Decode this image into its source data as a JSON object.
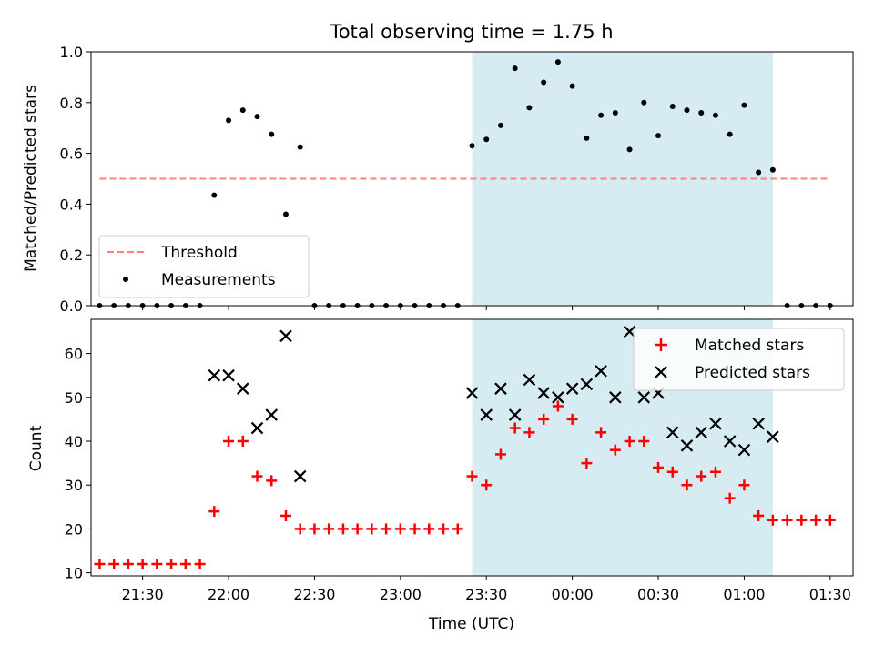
{
  "chart_data": [
    {
      "type": "scatter",
      "title": "Total observing time = 1.75 h",
      "xlabel": "",
      "ylabel": "Matched/Predicted stars",
      "ylim": [
        0,
        1.0
      ],
      "xlim": [
        "21:12",
        "01:38"
      ],
      "yticks": [
        "0.0",
        "0.2",
        "0.4",
        "0.6",
        "0.8",
        "1.0"
      ],
      "highlight_span": [
        "23:25",
        "01:10"
      ],
      "highlight_color": "#add8e6",
      "legend": {
        "placement": "lower-left",
        "entries": [
          "Threshold",
          "Measurements"
        ]
      },
      "threshold": {
        "name": "Threshold",
        "value": 0.5,
        "x_range": [
          "21:15",
          "01:30"
        ],
        "color": "#ff8080"
      },
      "series": [
        {
          "name": "Measurements",
          "color": "#000000",
          "marker": "dot",
          "x": [
            "21:15",
            "21:20",
            "21:25",
            "21:30",
            "21:35",
            "21:40",
            "21:45",
            "21:50",
            "21:55",
            "22:00",
            "22:05",
            "22:10",
            "22:15",
            "22:20",
            "22:25",
            "22:30",
            "22:35",
            "22:40",
            "22:45",
            "22:50",
            "22:55",
            "23:00",
            "23:05",
            "23:10",
            "23:15",
            "23:20",
            "23:25",
            "23:30",
            "23:35",
            "23:40",
            "23:45",
            "23:50",
            "23:55",
            "00:00",
            "00:05",
            "00:10",
            "00:15",
            "00:20",
            "00:25",
            "00:30",
            "00:35",
            "00:40",
            "00:45",
            "00:50",
            "00:55",
            "01:00",
            "01:05",
            "01:10",
            "01:15",
            "01:20",
            "01:25",
            "01:30"
          ],
          "y": [
            0,
            0,
            0,
            0,
            0,
            0,
            0,
            0,
            0.435,
            0.73,
            0.77,
            0.745,
            0.675,
            0.36,
            0.625,
            0,
            0,
            0,
            0,
            0,
            0,
            0,
            0,
            0,
            0,
            0,
            0.63,
            0.655,
            0.71,
            0.935,
            0.78,
            0.88,
            0.96,
            0.865,
            0.66,
            0.75,
            0.76,
            0.615,
            0.8,
            0.67,
            0.785,
            0.77,
            0.76,
            0.75,
            0.675,
            0.79,
            0.525,
            0.535,
            0,
            0,
            0,
            0
          ]
        }
      ]
    },
    {
      "type": "scatter",
      "xlabel": "Time (UTC)",
      "ylabel": "Count",
      "ylim": [
        9.3,
        67.8
      ],
      "xlim": [
        "21:12",
        "01:38"
      ],
      "yticks": [
        "10",
        "20",
        "30",
        "40",
        "50",
        "60"
      ],
      "xticks": [
        "21:30",
        "22:00",
        "22:30",
        "23:00",
        "23:30",
        "00:00",
        "00:30",
        "01:00",
        "01:30"
      ],
      "highlight_span": [
        "23:25",
        "01:10"
      ],
      "highlight_color": "#add8e6",
      "legend": {
        "placement": "upper-right",
        "entries": [
          "Matched stars",
          "Predicted stars"
        ]
      },
      "series": [
        {
          "name": "Matched stars",
          "color": "#ff0000",
          "marker": "plus",
          "x": [
            "21:15",
            "21:20",
            "21:25",
            "21:30",
            "21:35",
            "21:40",
            "21:45",
            "21:50",
            "21:55",
            "22:00",
            "22:05",
            "22:10",
            "22:15",
            "22:20",
            "22:25",
            "22:30",
            "22:35",
            "22:40",
            "22:45",
            "22:50",
            "22:55",
            "23:00",
            "23:05",
            "23:10",
            "23:15",
            "23:20",
            "23:25",
            "23:30",
            "23:35",
            "23:40",
            "23:45",
            "23:50",
            "23:55",
            "00:00",
            "00:05",
            "00:10",
            "00:15",
            "00:20",
            "00:25",
            "00:30",
            "00:35",
            "00:40",
            "00:45",
            "00:50",
            "00:55",
            "01:00",
            "01:05",
            "01:10",
            "01:15",
            "01:20",
            "01:25",
            "01:30"
          ],
          "y": [
            12,
            12,
            12,
            12,
            12,
            12,
            12,
            12,
            24,
            40,
            40,
            32,
            31,
            23,
            20,
            20,
            20,
            20,
            20,
            20,
            20,
            20,
            20,
            20,
            20,
            20,
            32,
            30,
            37,
            43,
            42,
            45,
            48,
            45,
            35,
            42,
            38,
            40,
            40,
            34,
            33,
            30,
            32,
            33,
            27,
            30,
            23,
            22,
            22,
            22,
            22,
            22
          ]
        },
        {
          "name": "Predicted stars",
          "color": "#000000",
          "marker": "x",
          "x": [
            "21:55",
            "22:00",
            "22:05",
            "22:10",
            "22:15",
            "22:20",
            "22:25",
            "23:25",
            "23:30",
            "23:35",
            "23:40",
            "23:45",
            "23:50",
            "23:55",
            "00:00",
            "00:05",
            "00:10",
            "00:15",
            "00:20",
            "00:25",
            "00:30",
            "00:35",
            "00:40",
            "00:45",
            "00:50",
            "00:55",
            "01:00",
            "01:05",
            "01:10"
          ],
          "y": [
            55,
            55,
            52,
            43,
            46,
            64,
            32,
            51,
            46,
            52,
            46,
            54,
            51,
            50,
            52,
            53,
            56,
            50,
            65,
            50,
            51,
            42,
            39,
            42,
            44,
            40,
            38,
            44,
            41
          ]
        }
      ]
    }
  ]
}
